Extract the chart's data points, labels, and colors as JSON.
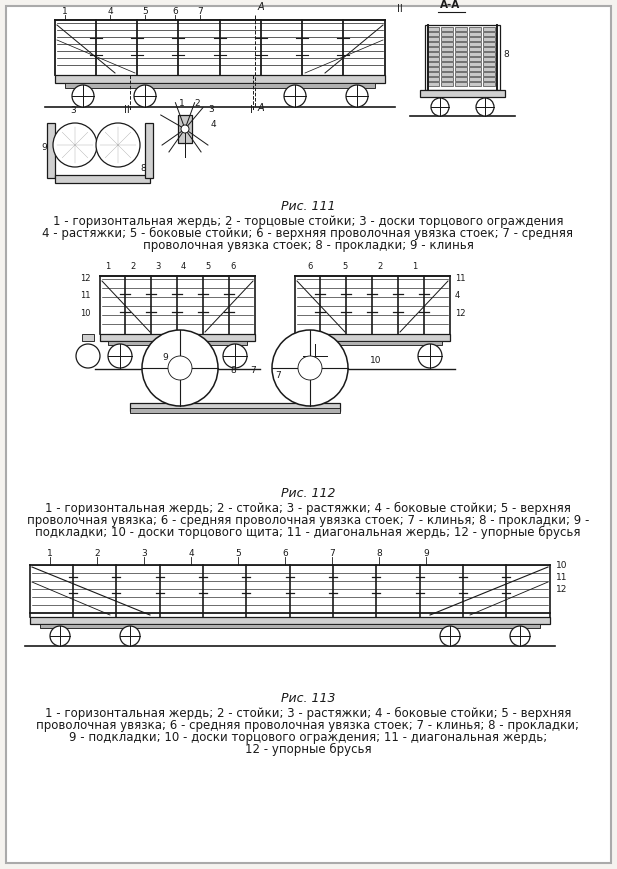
{
  "bg_color": "#f5f3ef",
  "border_color": "#aaaaaa",
  "title_111": "Рис. 111",
  "caption_111_line1": "1 - горизонтальная жердь; 2 - торцовые стойки; 3 - доски торцового ограждения",
  "caption_111_line2": "4 - растяжки; 5 - боковые стойки; 6 - верхняя проволочная увязка стоек; 7 - средняя",
  "caption_111_line3": "проволочная увязка стоек; 8 - прокладки; 9 - клинья",
  "title_112": "Рис. 112",
  "caption_112_line1": "1 - горизонтальная жердь; 2 - стойка; 3 - растяжки; 4 - боковые стойки; 5 - верхняя",
  "caption_112_line2": "проволочная увязка; 6 - средняя проволочная увязка стоек; 7 - клинья; 8 - прокладки; 9 -",
  "caption_112_line3": "подкладки; 10 - доски торцового щита; 11 - диагональная жердь; 12 - упорные брусья",
  "title_113": "Рис. 113",
  "caption_113_line1": "1 - горизонтальная жердь; 2 - стойки; 3 - растяжки; 4 - боковые стойки; 5 - верхняя",
  "caption_113_line2": "проволочная увязка; 6 - средняя проволочная увязка стоек; 7 - клинья; 8 - прокладки;",
  "caption_113_line3": "9 - подкладки; 10 - доски торцового ограждения; 11 - диагональная жердь;",
  "caption_113_line4": "12 - упорные брусья",
  "font_size_title": 9,
  "font_size_caption": 8.5,
  "text_color": "#1a1a1a",
  "lc": "#1a1a1a"
}
